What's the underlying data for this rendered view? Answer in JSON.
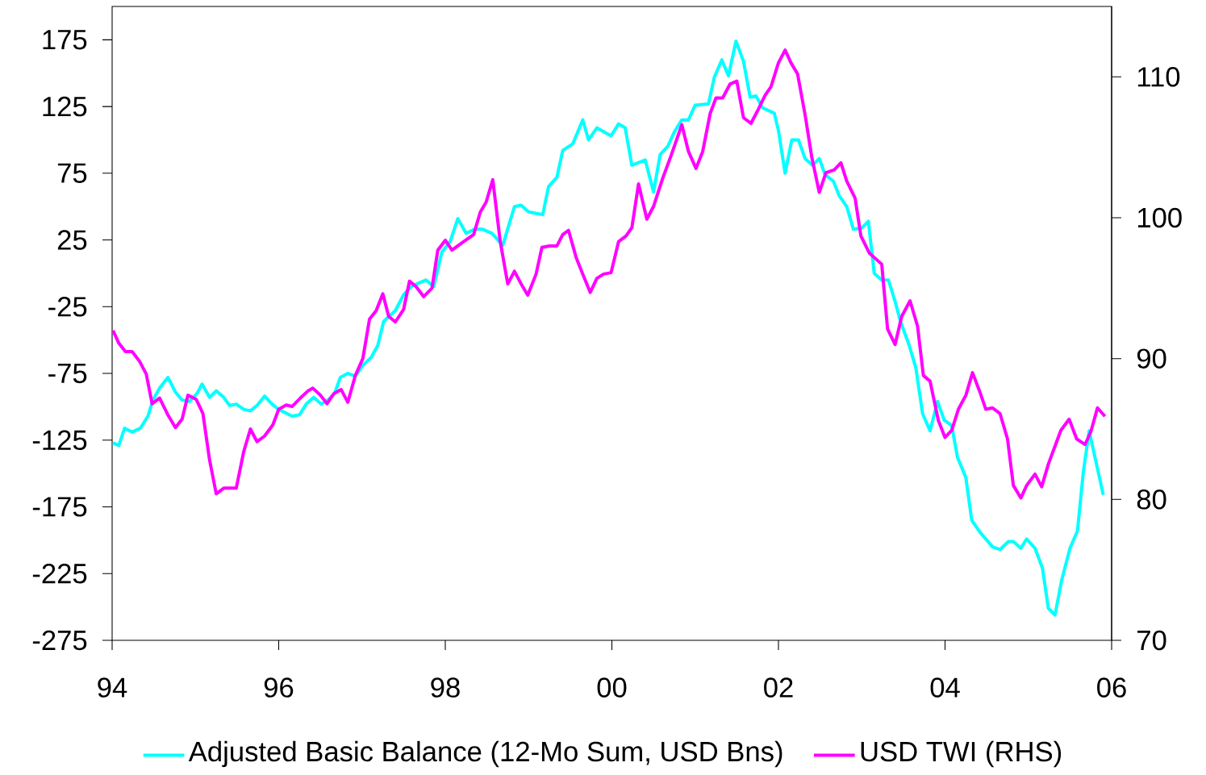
{
  "chart_data": {
    "type": "line",
    "xlim": [
      1994,
      2006
    ],
    "xticks": [
      {
        "value": 1994,
        "label": "94"
      },
      {
        "value": 1996,
        "label": "96"
      },
      {
        "value": 1998,
        "label": "98"
      },
      {
        "value": 2000,
        "label": "00"
      },
      {
        "value": 2002,
        "label": "02"
      },
      {
        "value": 2004,
        "label": "04"
      },
      {
        "value": 2006,
        "label": "06"
      }
    ],
    "ylim": [
      -275,
      200
    ],
    "yticks": [
      -275,
      -225,
      -175,
      -125,
      -75,
      -25,
      25,
      75,
      125,
      175
    ],
    "y2lim": [
      70,
      115
    ],
    "y2ticks": [
      70,
      80,
      90,
      100,
      110
    ],
    "legend": "bottom",
    "grid": false,
    "line_style": "solid",
    "series": [
      {
        "name": "Adjusted Basic Balance (12-Mo Sum, USD Bns)",
        "color": "#00ffff",
        "x": [
          1994.01,
          1994.08,
          1994.15,
          1994.24,
          1994.34,
          1994.43,
          1994.49,
          1994.57,
          1994.67,
          1994.76,
          1994.84,
          1994.93,
          1995.02,
          1995.08,
          1995.17,
          1995.25,
          1995.34,
          1995.41,
          1995.49,
          1995.58,
          1995.66,
          1995.74,
          1995.83,
          1995.92,
          1996.0,
          1996.16,
          1996.25,
          1996.33,
          1996.42,
          1996.51,
          1996.59,
          1996.67,
          1996.74,
          1996.83,
          1996.92,
          1997.01,
          1997.11,
          1997.19,
          1997.26,
          1997.4,
          1997.5,
          1997.59,
          1997.69,
          1997.77,
          1997.86,
          1997.96,
          1998.06,
          1998.15,
          1998.25,
          1998.35,
          1998.45,
          1998.56,
          1998.69,
          1998.83,
          1998.91,
          1999.0,
          1999.17,
          1999.24,
          1999.34,
          1999.41,
          1999.53,
          1999.65,
          1999.72,
          1999.82,
          1999.99,
          2000.08,
          2000.16,
          2000.24,
          2000.4,
          2000.5,
          2000.58,
          2000.67,
          2000.75,
          2000.84,
          2000.92,
          2001.0,
          2001.16,
          2001.23,
          2001.32,
          2001.4,
          2001.49,
          2001.58,
          2001.66,
          2001.73,
          2001.81,
          2001.95,
          2002.0,
          2002.08,
          2002.16,
          2002.24,
          2002.32,
          2002.41,
          2002.49,
          2002.56,
          2002.66,
          2002.73,
          2002.82,
          2002.9,
          2003.0,
          2003.08,
          2003.15,
          2003.24,
          2003.32,
          2003.4,
          2003.47,
          2003.57,
          2003.65,
          2003.73,
          2003.82,
          2003.91,
          2003.99,
          2004.08,
          2004.15,
          2004.25,
          2004.32,
          2004.42,
          2004.57,
          2004.66,
          2004.76,
          2004.82,
          2004.91,
          2004.98,
          2005.08,
          2005.17,
          2005.24,
          2005.32,
          2005.4,
          2005.5,
          2005.59,
          2005.66,
          2005.73,
          2005.9
        ],
        "values": [
          -127,
          -129,
          -116,
          -119,
          -116,
          -107,
          -95,
          -86,
          -78,
          -89,
          -95,
          -96,
          -90,
          -83,
          -93,
          -88,
          -93,
          -99,
          -98,
          -102,
          -103,
          -99,
          -92,
          -98,
          -102,
          -107,
          -106,
          -98,
          -93,
          -98,
          -95,
          -90,
          -78,
          -75,
          -77,
          -69,
          -63,
          -54,
          -36,
          -28,
          -16,
          -10,
          -7,
          -5,
          -10,
          16,
          24,
          41,
          30,
          33,
          33,
          30,
          21,
          50,
          51,
          46,
          44,
          65,
          72,
          92,
          97,
          115,
          100,
          109,
          103,
          112,
          109,
          81,
          85,
          61,
          89,
          95,
          106,
          115,
          115,
          126,
          127,
          147,
          160,
          148,
          174,
          159,
          132,
          133,
          124,
          120,
          107,
          75,
          100,
          100,
          86,
          81,
          86,
          74,
          69,
          58,
          50,
          33,
          34,
          39,
          0,
          -5,
          -5,
          -21,
          -37,
          -54,
          -71,
          -105,
          -118,
          -96,
          -110,
          -114,
          -138,
          -153,
          -185,
          -194,
          -205,
          -207,
          -201,
          -201,
          -206,
          -199,
          -206,
          -221,
          -251,
          -256,
          -230,
          -206,
          -193,
          -149,
          -118,
          -166
        ]
      },
      {
        "name": "USD TWI (RHS)",
        "color": "#ff00ff",
        "axis": "y2",
        "x": [
          1994.01,
          1994.08,
          1994.16,
          1994.24,
          1994.33,
          1994.41,
          1994.48,
          1994.57,
          1994.67,
          1994.76,
          1994.84,
          1994.91,
          1995.01,
          1995.09,
          1995.17,
          1995.25,
          1995.34,
          1995.41,
          1995.49,
          1995.58,
          1995.66,
          1995.74,
          1995.83,
          1995.93,
          1996.0,
          1996.09,
          1996.16,
          1996.26,
          1996.35,
          1996.41,
          1996.5,
          1996.58,
          1996.66,
          1996.75,
          1996.83,
          1996.92,
          1997.01,
          1997.09,
          1997.17,
          1997.25,
          1997.32,
          1997.4,
          1997.5,
          1997.57,
          1997.65,
          1997.74,
          1997.84,
          1997.91,
          1998.0,
          1998.08,
          1998.22,
          1998.34,
          1998.42,
          1998.49,
          1998.57,
          1998.66,
          1998.75,
          1998.83,
          1998.92,
          1998.99,
          1999.09,
          1999.16,
          1999.25,
          1999.34,
          1999.41,
          1999.48,
          1999.57,
          1999.65,
          1999.74,
          1999.82,
          1999.9,
          1999.99,
          2000.08,
          2000.17,
          2000.24,
          2000.32,
          2000.42,
          2000.5,
          2000.61,
          2000.71,
          2000.84,
          2000.92,
          2001.01,
          2001.09,
          2001.18,
          2001.25,
          2001.33,
          2001.42,
          2001.5,
          2001.58,
          2001.67,
          2001.75,
          2001.84,
          2001.91,
          2002.0,
          2002.08,
          2002.15,
          2002.23,
          2002.32,
          2002.4,
          2002.49,
          2002.57,
          2002.67,
          2002.75,
          2002.82,
          2002.92,
          2002.99,
          2003.09,
          2003.24,
          2003.31,
          2003.4,
          2003.48,
          2003.58,
          2003.67,
          2003.74,
          2003.82,
          2003.92,
          2004.0,
          2004.08,
          2004.16,
          2004.25,
          2004.33,
          2004.42,
          2004.49,
          2004.57,
          2004.66,
          2004.75,
          2004.82,
          2004.91,
          2004.98,
          2005.08,
          2005.16,
          2005.24,
          2005.34,
          2005.39,
          2005.49,
          2005.58,
          2005.68,
          2005.75,
          2005.83,
          2005.92
        ],
        "values": [
          92.0,
          91.1,
          90.5,
          90.5,
          89.8,
          88.9,
          86.8,
          87.2,
          86.0,
          85.1,
          85.7,
          87.4,
          87.1,
          86.1,
          82.8,
          80.4,
          80.8,
          80.8,
          80.8,
          83.4,
          85.0,
          84.1,
          84.5,
          85.3,
          86.4,
          86.7,
          86.6,
          87.2,
          87.7,
          87.9,
          87.4,
          86.8,
          87.5,
          87.8,
          86.9,
          88.8,
          90.0,
          92.8,
          93.4,
          94.6,
          93.0,
          92.6,
          93.5,
          95.5,
          95.1,
          94.4,
          95.0,
          97.7,
          98.4,
          97.7,
          98.3,
          98.8,
          100.4,
          101.1,
          102.7,
          98.3,
          95.3,
          96.2,
          95.2,
          94.5,
          96.0,
          97.9,
          98.0,
          98.0,
          98.8,
          99.1,
          97.2,
          96.0,
          94.7,
          95.7,
          96.0,
          96.1,
          98.3,
          98.7,
          99.3,
          102.4,
          99.9,
          100.8,
          102.8,
          104.4,
          106.6,
          104.7,
          103.5,
          104.7,
          107.4,
          108.5,
          108.5,
          109.5,
          109.7,
          107.1,
          106.7,
          107.6,
          108.7,
          109.3,
          111.0,
          111.9,
          111.0,
          110.2,
          107.3,
          104.3,
          101.8,
          103.2,
          103.4,
          103.9,
          102.6,
          101.4,
          98.7,
          97.5,
          96.7,
          92.1,
          91.0,
          93.0,
          94.1,
          92.3,
          88.8,
          88.4,
          85.6,
          84.4,
          84.9,
          86.4,
          87.4,
          89.0,
          87.6,
          86.4,
          86.5,
          86.1,
          84.3,
          81.0,
          80.1,
          81.0,
          81.8,
          80.9,
          82.5,
          84.1,
          84.9,
          85.7,
          84.3,
          83.9,
          84.8,
          86.5,
          85.9
        ]
      }
    ]
  }
}
